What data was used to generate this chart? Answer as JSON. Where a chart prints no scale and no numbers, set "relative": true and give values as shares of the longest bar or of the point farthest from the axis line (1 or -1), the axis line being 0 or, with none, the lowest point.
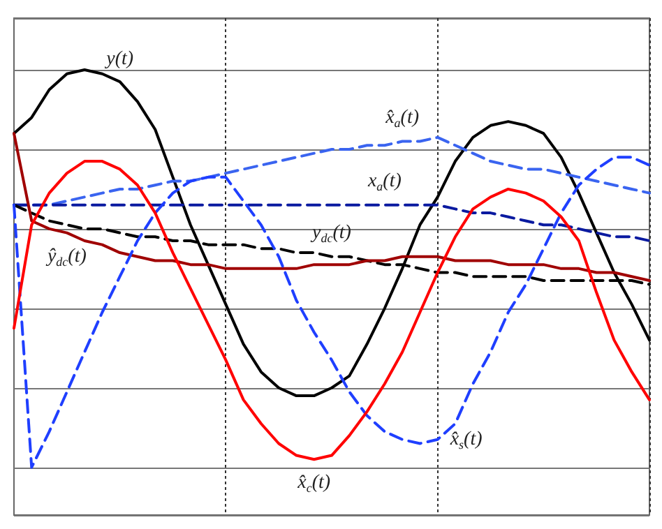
{
  "chart_data": {
    "type": "line",
    "relative": true,
    "grid": true,
    "categories": [
      null,
      null,
      null,
      null,
      null,
      null,
      null,
      null,
      null,
      null,
      null,
      null,
      null,
      null,
      null,
      null,
      null,
      null,
      null,
      null,
      null,
      null,
      null,
      null,
      null,
      null,
      null,
      null,
      null,
      null,
      null,
      null,
      null,
      null,
      null,
      null,
      null
    ],
    "series": [
      {
        "name": "y(t)",
        "color": "#000000",
        "line_style": "solid",
        "values": [
          0.84,
          0.88,
          0.95,
          0.99,
          1.0,
          0.99,
          0.97,
          0.92,
          0.85,
          0.73,
          0.61,
          0.51,
          0.41,
          0.31,
          0.24,
          0.2,
          0.18,
          0.18,
          0.2,
          0.23,
          0.31,
          0.4,
          0.5,
          0.61,
          0.68,
          0.77,
          0.83,
          0.86,
          0.87,
          0.86,
          0.84,
          0.78,
          0.69,
          0.59,
          0.49,
          0.41,
          0.32
        ]
      },
      {
        "name": "x̂$_{a}$(t)",
        "color": "#3a64f0",
        "line_style": "dashed",
        "values": [
          0.66,
          0.66,
          0.66,
          0.67,
          0.68,
          0.69,
          0.7,
          0.7,
          0.71,
          0.72,
          0.72,
          0.73,
          0.74,
          0.75,
          0.76,
          0.77,
          0.78,
          0.79,
          0.8,
          0.8,
          0.81,
          0.81,
          0.82,
          0.82,
          0.83,
          0.81,
          0.79,
          0.77,
          0.76,
          0.75,
          0.75,
          0.74,
          0.73,
          0.72,
          0.71,
          0.7,
          0.69
        ]
      },
      {
        "name": "x$_{a}$(t)",
        "color": "#0a1aa0",
        "line_style": "dashed",
        "values": [
          0.66,
          0.66,
          0.66,
          0.66,
          0.66,
          0.66,
          0.66,
          0.66,
          0.66,
          0.66,
          0.66,
          0.66,
          0.66,
          0.66,
          0.66,
          0.66,
          0.66,
          0.66,
          0.66,
          0.66,
          0.66,
          0.66,
          0.66,
          0.66,
          0.66,
          0.65,
          0.64,
          0.64,
          0.63,
          0.62,
          0.61,
          0.61,
          0.6,
          0.59,
          0.58,
          0.58,
          0.57
        ]
      },
      {
        "name": "y$_{dc}$(t)",
        "color": "#000000",
        "line_style": "dashed",
        "values": [
          0.66,
          0.64,
          0.62,
          0.61,
          0.6,
          0.6,
          0.59,
          0.58,
          0.58,
          0.57,
          0.57,
          0.56,
          0.56,
          0.56,
          0.55,
          0.55,
          0.54,
          0.54,
          0.53,
          0.53,
          0.52,
          0.51,
          0.51,
          0.5,
          0.49,
          0.49,
          0.48,
          0.48,
          0.48,
          0.48,
          0.47,
          0.47,
          0.47,
          0.47,
          0.47,
          0.47,
          0.46
        ]
      },
      {
        "name": "ŷ$_{dc}$(t)",
        "color": "#a00000",
        "line_style": "solid",
        "values": [
          0.84,
          0.62,
          0.6,
          0.59,
          0.57,
          0.56,
          0.54,
          0.53,
          0.52,
          0.52,
          0.51,
          0.51,
          0.5,
          0.5,
          0.5,
          0.5,
          0.5,
          0.51,
          0.51,
          0.51,
          0.52,
          0.52,
          0.53,
          0.53,
          0.53,
          0.52,
          0.52,
          0.52,
          0.51,
          0.51,
          0.51,
          0.5,
          0.5,
          0.49,
          0.49,
          0.48,
          0.47
        ]
      },
      {
        "name": "x̂$_{s}$(t)",
        "color": "#1f3fff",
        "line_style": "dashed",
        "values": [
          0.66,
          0,
          0.09,
          0.19,
          0.29,
          0.39,
          0.48,
          0.57,
          0.64,
          0.69,
          0.72,
          0.73,
          0.73,
          0.67,
          0.61,
          0.53,
          0.42,
          0.34,
          0.27,
          0.19,
          0.13,
          0.09,
          0.07,
          0.06,
          0.07,
          0.11,
          0.21,
          0.29,
          0.39,
          0.46,
          0.55,
          0.64,
          0.71,
          0.75,
          0.78,
          0.78,
          0.76
        ]
      },
      {
        "name": "x̂$_{c}$(t)",
        "color": "#ff0000",
        "line_style": "solid",
        "values": [
          0.35,
          0.61,
          0.69,
          0.74,
          0.77,
          0.77,
          0.75,
          0.71,
          0.64,
          0.54,
          0.45,
          0.36,
          0.27,
          0.17,
          0.11,
          0.06,
          0.03,
          0.02,
          0.03,
          0.08,
          0.14,
          0.21,
          0.29,
          0.39,
          0.49,
          0.58,
          0.65,
          0.68,
          0.7,
          0.69,
          0.67,
          0.63,
          0.57,
          0.44,
          0.32,
          0.24,
          0.17
        ]
      }
    ]
  }
}
